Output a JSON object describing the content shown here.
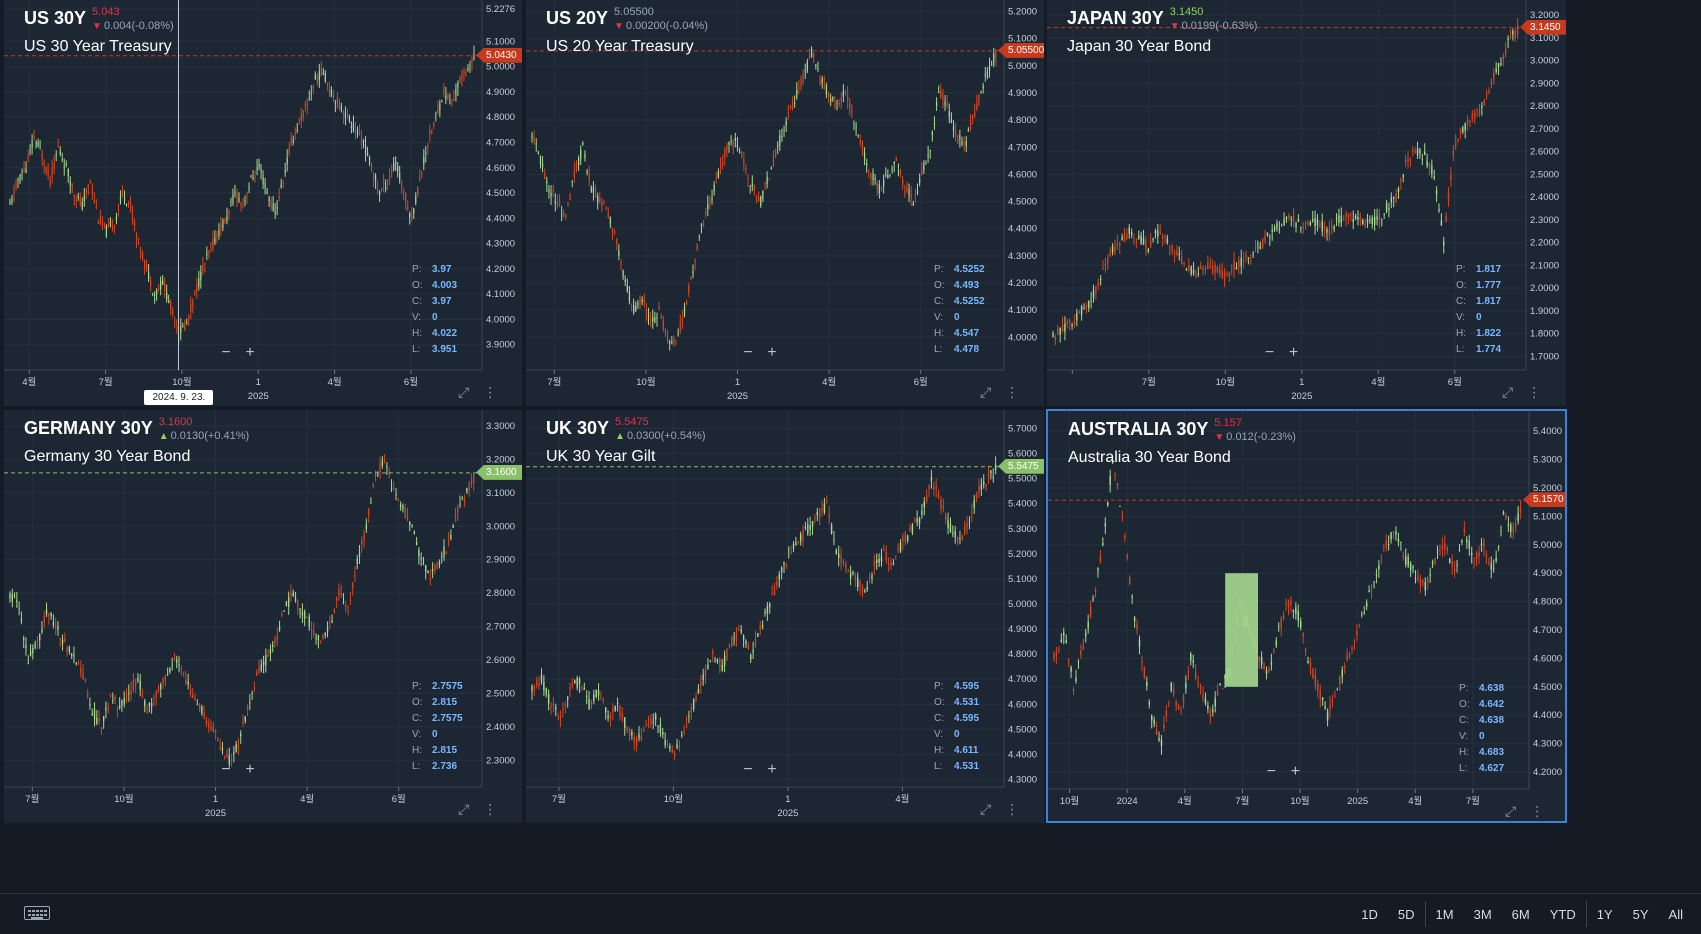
{
  "colors": {
    "panel_bg": "#1c2733",
    "grid": "#243140",
    "up_candle": "#a6d98f",
    "down_candle": "#d2461f",
    "price_line_red": "#c73a1d",
    "price_line_green": "#89c06a",
    "price_down": "#e0314b",
    "price_up": "#8cd35f",
    "axis_text": "#c8d0da",
    "ohlc_value": "#7ab8ff",
    "selected_border": "#3f7fd8"
  },
  "panels": [
    {
      "id": "us30y",
      "ticker": "US 30Y",
      "price": "5.043",
      "price_color": "down",
      "change": "0.004(-0.08%)",
      "change_dir": "down",
      "subtitle": "US 30 Year Treasury",
      "current_tag": "5.0430",
      "tag_color": "down",
      "y_ticks": [
        "5.2276",
        "5.1000",
        "5.0000",
        "4.9000",
        "4.8000",
        "4.7000",
        "4.6000",
        "4.5000",
        "4.4000",
        "4.3000",
        "4.2000",
        "4.1000",
        "4.0000",
        "3.9000"
      ],
      "y_range": [
        3.8,
        5.24
      ],
      "x_ticks": [
        "4월",
        "7월",
        "10월",
        "1",
        "4월",
        "6월"
      ],
      "x_year": "2025",
      "ohlc": {
        "P": "3.97",
        "O": "4.003",
        "C": "3.97",
        "V": "0",
        "H": "4.022",
        "L": "3.951"
      },
      "crosshair_date": "2024. 9. 23.",
      "series": [
        4.45,
        4.55,
        4.6,
        4.72,
        4.65,
        4.55,
        4.68,
        4.6,
        4.5,
        4.45,
        4.55,
        4.4,
        4.35,
        4.38,
        4.5,
        4.45,
        4.3,
        4.2,
        4.1,
        4.15,
        4.05,
        3.95,
        3.98,
        4.1,
        4.2,
        4.28,
        4.35,
        4.4,
        4.5,
        4.45,
        4.55,
        4.6,
        4.5,
        4.42,
        4.55,
        4.7,
        4.78,
        4.85,
        4.95,
        4.98,
        4.9,
        4.85,
        4.8,
        4.75,
        4.7,
        4.6,
        4.5,
        4.55,
        4.62,
        4.5,
        4.4,
        4.55,
        4.7,
        4.8,
        4.9,
        4.85,
        4.95,
        5.0,
        5.04
      ],
      "current": 5.043,
      "selected": false
    },
    {
      "id": "us20y",
      "ticker": "US 20Y",
      "price": "5.05500",
      "price_color": "neutral",
      "change": "0.00200(-0.04%)",
      "change_dir": "down",
      "subtitle": "US 20 Year Treasury",
      "current_tag": "5.05500",
      "tag_color": "down",
      "y_ticks": [
        "5.2000",
        "5.1000",
        "5.0000",
        "4.9000",
        "4.8000",
        "4.7000",
        "4.6000",
        "4.5000",
        "4.4000",
        "4.3000",
        "4.2000",
        "4.1000",
        "4.0000"
      ],
      "y_range": [
        3.88,
        5.22
      ],
      "x_ticks": [
        "7월",
        "10월",
        "1",
        "4월",
        "6월"
      ],
      "x_year": "2025",
      "ohlc": {
        "P": "4.5252",
        "O": "4.493",
        "C": "4.5252",
        "V": "0",
        "H": "4.547",
        "L": "4.478"
      },
      "series": [
        4.75,
        4.65,
        4.55,
        4.5,
        4.45,
        4.6,
        4.7,
        4.55,
        4.5,
        4.45,
        4.35,
        4.2,
        4.1,
        4.15,
        4.05,
        4.1,
        4.0,
        3.98,
        4.1,
        4.25,
        4.4,
        4.5,
        4.6,
        4.7,
        4.72,
        4.65,
        4.55,
        4.5,
        4.6,
        4.7,
        4.8,
        4.88,
        4.95,
        5.05,
        4.95,
        4.9,
        4.85,
        4.9,
        4.8,
        4.7,
        4.6,
        4.55,
        4.6,
        4.65,
        4.55,
        4.5,
        4.6,
        4.7,
        4.9,
        4.85,
        4.75,
        4.7,
        4.8,
        4.9,
        5.0,
        5.055
      ],
      "current": 5.055,
      "selected": false
    },
    {
      "id": "japan30y",
      "ticker": "JAPAN 30Y",
      "price": "3.1450",
      "price_color": "up",
      "change": "0.0199(-0.63%)",
      "change_dir": "down",
      "subtitle": "Japan 30 Year Bond",
      "current_tag": "3.1450",
      "tag_color": "down",
      "y_ticks": [
        "3.2000",
        "3.1000",
        "3.0000",
        "2.9000",
        "2.8000",
        "2.7000",
        "2.6000",
        "2.5000",
        "2.4000",
        "2.3000",
        "2.2000",
        "2.1000",
        "2.0000",
        "1.9000",
        "1.8000",
        "1.7000"
      ],
      "y_range": [
        1.64,
        3.24
      ],
      "x_ticks": [
        "",
        "7월",
        "10월",
        "1",
        "4월",
        "6월"
      ],
      "x_year": "2025",
      "ohlc": {
        "P": "1.817",
        "O": "1.777",
        "C": "1.817",
        "V": "0",
        "H": "1.822",
        "L": "1.774"
      },
      "series": [
        1.78,
        1.82,
        1.85,
        1.9,
        1.95,
        2.05,
        2.15,
        2.2,
        2.25,
        2.22,
        2.18,
        2.25,
        2.2,
        2.15,
        2.1,
        2.05,
        2.1,
        2.08,
        2.05,
        2.1,
        2.12,
        2.15,
        2.2,
        2.25,
        2.28,
        2.3,
        2.28,
        2.3,
        2.28,
        2.25,
        2.3,
        2.32,
        2.3,
        2.28,
        2.3,
        2.35,
        2.4,
        2.55,
        2.6,
        2.58,
        2.5,
        2.2,
        2.6,
        2.7,
        2.75,
        2.8,
        2.9,
        3.0,
        3.1,
        3.145
      ],
      "current": 3.145,
      "selected": false
    },
    {
      "id": "germany30y",
      "ticker": "GERMANY 30Y",
      "price": "3.1600",
      "price_color": "down",
      "change": "0.0130(+0.41%)",
      "change_dir": "up",
      "subtitle": "Germany 30 Year Bond",
      "current_tag": "3.1600",
      "tag_color": "up",
      "y_ticks": [
        "3.3000",
        "3.2000",
        "3.1000",
        "3.0000",
        "2.9000",
        "2.8000",
        "2.7000",
        "2.6000",
        "2.5000",
        "2.4000",
        "2.3000"
      ],
      "y_range": [
        2.22,
        3.33
      ],
      "x_ticks": [
        "7월",
        "10월",
        "1",
        "4월",
        "6월"
      ],
      "x_year": "2025",
      "ohlc": {
        "P": "2.7575",
        "O": "2.815",
        "C": "2.7575",
        "V": "0",
        "H": "2.815",
        "L": "2.736"
      },
      "series": [
        2.8,
        2.75,
        2.6,
        2.65,
        2.75,
        2.7,
        2.65,
        2.6,
        2.55,
        2.45,
        2.4,
        2.5,
        2.45,
        2.5,
        2.55,
        2.45,
        2.5,
        2.55,
        2.6,
        2.55,
        2.5,
        2.45,
        2.4,
        2.35,
        2.3,
        2.35,
        2.45,
        2.55,
        2.6,
        2.65,
        2.75,
        2.8,
        2.75,
        2.7,
        2.65,
        2.7,
        2.8,
        2.75,
        2.9,
        3.0,
        3.15,
        3.2,
        3.1,
        3.05,
        3.0,
        2.9,
        2.85,
        2.9,
        2.95,
        3.05,
        3.1,
        3.16
      ],
      "current": 3.16,
      "selected": false
    },
    {
      "id": "uk30y",
      "ticker": "UK 30Y",
      "price": "5.5475",
      "price_color": "down",
      "change": "0.0300(+0.54%)",
      "change_dir": "up",
      "subtitle": "UK 30 Year Gilt",
      "current_tag": "5.5475",
      "tag_color": "up",
      "y_ticks": [
        "5.7000",
        "5.6000",
        "5.5000",
        "5.4000",
        "5.3000",
        "5.2000",
        "5.1000",
        "5.0000",
        "4.9000",
        "4.8000",
        "4.7000",
        "4.6000",
        "4.5000",
        "4.4000",
        "4.3000"
      ],
      "y_range": [
        4.27,
        5.75
      ],
      "x_ticks": [
        "7월",
        "10월",
        "1",
        "4월"
      ],
      "x_year": "2025",
      "ohlc": {
        "P": "4.595",
        "O": "4.531",
        "C": "4.595",
        "V": "0",
        "H": "4.611",
        "L": "4.531"
      },
      "series": [
        4.65,
        4.7,
        4.6,
        4.55,
        4.65,
        4.7,
        4.6,
        4.65,
        4.55,
        4.6,
        4.5,
        4.45,
        4.5,
        4.55,
        4.45,
        4.4,
        4.5,
        4.6,
        4.7,
        4.8,
        4.75,
        4.85,
        4.9,
        4.8,
        4.9,
        5.0,
        5.1,
        5.2,
        5.25,
        5.3,
        5.35,
        5.4,
        5.2,
        5.15,
        5.1,
        5.05,
        5.15,
        5.2,
        5.15,
        5.25,
        5.3,
        5.35,
        5.5,
        5.4,
        5.3,
        5.25,
        5.35,
        5.45,
        5.5,
        5.5475
      ],
      "current": 5.5475,
      "selected": false
    },
    {
      "id": "australia30y",
      "ticker": "AUSTRALIA 30Y",
      "price": "5.157",
      "price_color": "down",
      "change": "0.012(-0.23%)",
      "change_dir": "down",
      "subtitle": "Australia 30 Year Bond",
      "current_tag": "5.1570",
      "tag_color": "down",
      "y_ticks": [
        "5.4000",
        "5.3000",
        "5.2000",
        "5.1000",
        "5.0000",
        "4.9000",
        "4.8000",
        "4.7000",
        "4.6000",
        "4.5000",
        "4.4000",
        "4.3000",
        "4.2000"
      ],
      "y_range": [
        4.14,
        5.45
      ],
      "x_ticks": [
        "10월",
        "2024",
        "4월",
        "7월",
        "10월",
        "2025",
        "4월",
        "7월"
      ],
      "x_year": "",
      "ohlc": {
        "P": "4.638",
        "O": "4.642",
        "C": "4.638",
        "V": "0",
        "H": "4.683",
        "L": "4.627"
      },
      "series": [
        4.6,
        4.7,
        4.5,
        4.65,
        4.8,
        5.0,
        5.3,
        5.1,
        4.8,
        4.6,
        4.4,
        4.3,
        4.5,
        4.4,
        4.6,
        4.5,
        4.4,
        4.5,
        4.55,
        4.8,
        4.7,
        4.6,
        4.55,
        4.7,
        4.8,
        4.75,
        4.6,
        4.5,
        4.4,
        4.5,
        4.6,
        4.7,
        4.8,
        4.9,
        5.0,
        5.05,
        4.95,
        4.9,
        4.85,
        4.95,
        5.0,
        4.9,
        5.05,
        4.95,
        5.0,
        4.9,
        5.1,
        5.05,
        5.157
      ],
      "current": 5.157,
      "selected": true
    }
  ],
  "bottom_bar": {
    "range_groups": [
      [
        "1D",
        "5D"
      ],
      [
        "1M",
        "3M",
        "6M",
        "YTD"
      ],
      [
        "1Y",
        "5Y",
        "All"
      ]
    ]
  }
}
